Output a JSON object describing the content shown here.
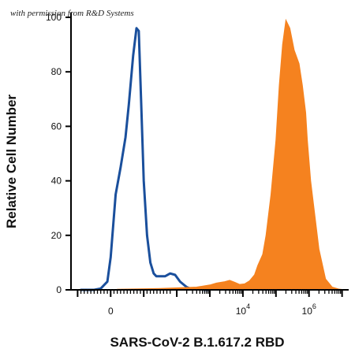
{
  "credit_text": "with permission from R&D Systems",
  "chart_data": {
    "type": "area",
    "title": "",
    "xlabel": "SARS-CoV-2 B.1.617.2 RBD",
    "ylabel": "Relative Cell Number",
    "ylim": [
      0,
      100
    ],
    "x_scale": "biexponential",
    "x_tick_labels": [
      {
        "base": "0",
        "exp": ""
      },
      {
        "base": "10",
        "exp": "4"
      },
      {
        "base": "10",
        "exp": "6"
      }
    ],
    "y_ticks": [
      0,
      20,
      40,
      60,
      80,
      100
    ],
    "y_tick_labels": [
      "0",
      "20",
      "40",
      "60",
      "80",
      "100"
    ],
    "grid": false,
    "legend": "none",
    "series": [
      {
        "style": "outline",
        "color": "#1a4f9c",
        "x": [
          -0.9,
          -0.5,
          -0.3,
          -0.1,
          0.0,
          0.15,
          0.3,
          0.45,
          0.55,
          0.68,
          0.78,
          0.85,
          0.92,
          1.0,
          1.1,
          1.2,
          1.3,
          1.38,
          1.5,
          1.65,
          1.8,
          1.95,
          2.1,
          2.2,
          2.3,
          2.4,
          2.55,
          2.7,
          2.85,
          3.0
        ],
        "y": [
          0,
          0,
          0.5,
          3,
          12,
          35,
          45,
          56,
          68,
          86,
          96,
          95,
          70,
          40,
          20,
          10,
          6,
          5,
          5,
          5,
          6,
          5.5,
          3,
          2,
          1,
          0.5,
          0.3,
          0.2,
          0,
          0
        ]
      },
      {
        "style": "filled",
        "color": "#f5821f",
        "x": [
          0.2,
          1.5,
          2.6,
          3.0,
          3.2,
          3.45,
          3.6,
          3.75,
          3.9,
          4.05,
          4.2,
          4.35,
          4.45,
          4.6,
          4.7,
          4.85,
          5.0,
          5.1,
          5.2,
          5.3,
          5.42,
          5.55,
          5.7,
          5.8,
          5.9,
          5.95,
          6.05,
          6.15,
          6.3,
          6.5,
          6.7,
          6.9,
          7.1
        ],
        "y": [
          0.2,
          0.5,
          1,
          1.8,
          2.5,
          3,
          3.5,
          2.8,
          2,
          2.2,
          3.3,
          5.5,
          9,
          13,
          20,
          35,
          55,
          75,
          90,
          99,
          96,
          88,
          83,
          75,
          65,
          55,
          40,
          30,
          15,
          4,
          1,
          0.3,
          0
        ]
      }
    ]
  }
}
